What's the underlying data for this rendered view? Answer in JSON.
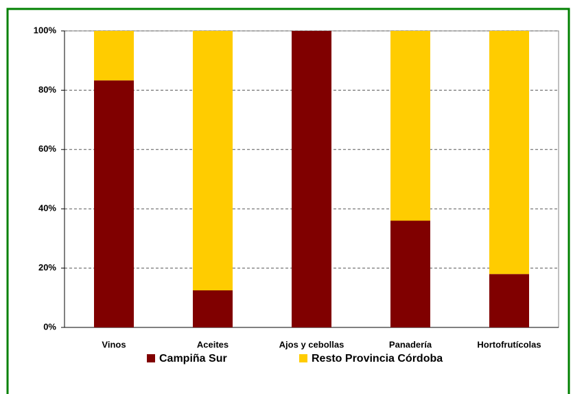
{
  "chart_data": {
    "type": "stacked_bar",
    "categories": [
      "Vinos",
      "Aceites",
      "Ajos y cebollas",
      "Panadería",
      "Hortofrutícolas"
    ],
    "series": [
      {
        "name": "Campiña Sur",
        "color": "#800000",
        "values": [
          83.3,
          12.5,
          100,
          36,
          18
        ]
      },
      {
        "name": "Resto Provincia Córdoba",
        "color": "#ffcc00",
        "values": [
          16.7,
          87.5,
          0,
          64,
          82
        ]
      }
    ],
    "ylim": [
      0,
      100
    ],
    "yticks": [
      {
        "value": 0,
        "label": "0%"
      },
      {
        "value": 20,
        "label": "20%"
      },
      {
        "value": 40,
        "label": "40%"
      },
      {
        "value": 60,
        "label": "60%"
      },
      {
        "value": 80,
        "label": "80%"
      },
      {
        "value": 100,
        "label": "100%"
      }
    ],
    "grid": true
  }
}
